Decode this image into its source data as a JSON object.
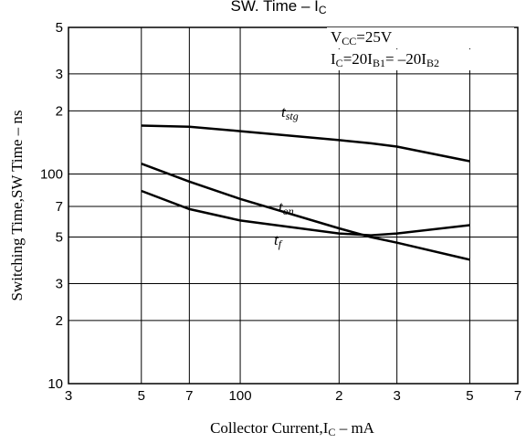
{
  "chart_data": {
    "type": "line",
    "title": [
      {
        "text": "SW. Time  –  I"
      },
      {
        "sub": "C"
      }
    ],
    "x_label": [
      {
        "text": "Collector Current,I"
      },
      {
        "sub": "C"
      },
      {
        "text": " – mA"
      }
    ],
    "y_label": [
      {
        "text": "Switching Time,SW Time – ns"
      }
    ],
    "annotations": [
      [
        {
          "text": "V"
        },
        {
          "sub": "CC"
        },
        {
          "text": "=25V"
        }
      ],
      [
        {
          "text": "I"
        },
        {
          "sub": "C"
        },
        {
          "text": "=20I"
        },
        {
          "sub": "B1"
        },
        {
          "text": "= –20I"
        },
        {
          "sub": "B2"
        }
      ]
    ],
    "log_x": true,
    "log_y": true,
    "grid": true,
    "xlim": [
      30,
      700
    ],
    "xticks": [
      {
        "value": 30,
        "label": "3"
      },
      {
        "value": 50,
        "label": "5"
      },
      {
        "value": 70,
        "label": "7"
      },
      100,
      {
        "value": 200,
        "label": "2"
      },
      {
        "value": 300,
        "label": "3"
      },
      {
        "value": 500,
        "label": "5"
      },
      {
        "value": 700,
        "label": "7"
      }
    ],
    "ylim": [
      10,
      500
    ],
    "yticks": [
      10,
      {
        "value": 20,
        "label": "2"
      },
      {
        "value": 30,
        "label": "3"
      },
      {
        "value": 50,
        "label": "5"
      },
      {
        "value": 70,
        "label": "7"
      },
      100,
      {
        "value": 200,
        "label": "2"
      },
      {
        "value": 300,
        "label": "3"
      },
      {
        "value": 500,
        "label": "5"
      }
    ],
    "x": [
      50,
      70,
      100,
      200,
      250,
      300,
      500
    ],
    "series": [
      {
        "name": [
          {
            "text": "t"
          },
          {
            "sub": "stg"
          }
        ],
        "color": "#000000",
        "values": [
          170,
          168,
          160,
          145,
          140,
          135,
          115
        ]
      },
      {
        "name": [
          {
            "text": "t"
          },
          {
            "sub": "on"
          }
        ],
        "color": "#000000",
        "values": [
          112,
          92,
          76,
          55,
          50,
          47,
          39
        ]
      },
      {
        "name": [
          {
            "text": "t"
          },
          {
            "sub": "f"
          }
        ],
        "color": "#000000",
        "values": [
          83,
          68,
          60,
          52,
          51,
          52,
          57
        ]
      }
    ]
  }
}
